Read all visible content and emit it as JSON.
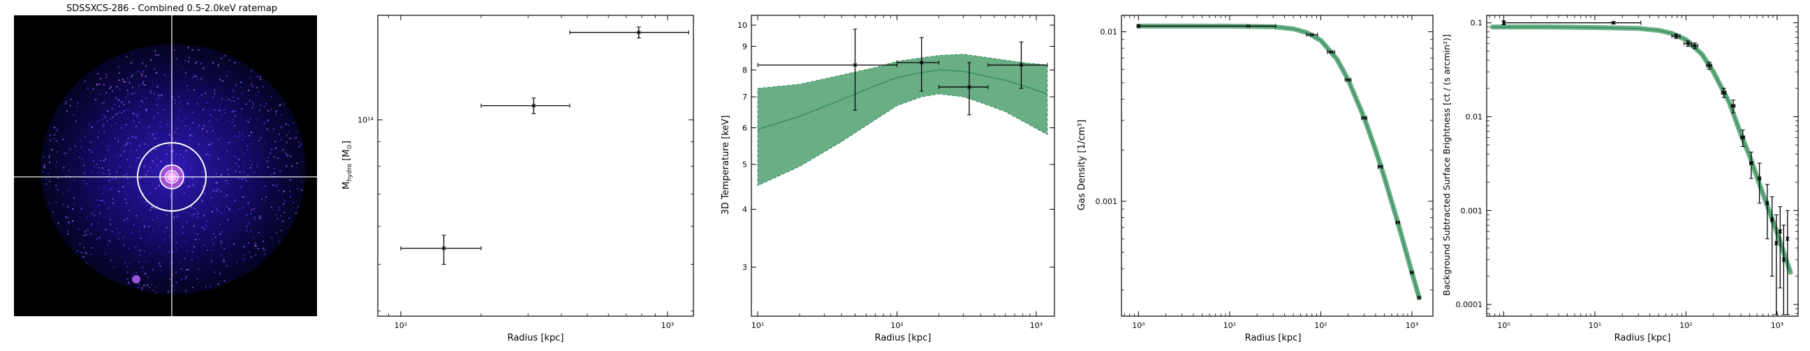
{
  "ratemap": {
    "title": "SDSSXCS-286 - Combined 0.5-2.0keV ratemap"
  },
  "chart_data": [
    {
      "type": "scatter",
      "name": "hydrostatic-mass",
      "title": "",
      "xlabel": "Radius [kpc]",
      "ylabel": "M_hydro [M_⊙]",
      "xscale": "log",
      "yscale": "log",
      "xlim": [
        82,
        1250
      ],
      "ylim": [
        39000000000000.0,
        165000000000000.0
      ],
      "xticks": [
        {
          "v": 100,
          "label": "10²"
        },
        {
          "v": 1000,
          "label": "10³"
        }
      ],
      "yticks": [
        {
          "v": 100000000000000.0,
          "label": "10¹⁴"
        }
      ],
      "grid": false,
      "points": [
        {
          "x": 145,
          "xlo": 100,
          "xhi": 200,
          "y": 54000000000000.0,
          "ylo": 50000000000000.0,
          "yhi": 57500000000000.0
        },
        {
          "x": 315,
          "xlo": 200,
          "xhi": 430,
          "y": 107000000000000.0,
          "ylo": 103000000000000.0,
          "yhi": 111000000000000.0
        },
        {
          "x": 780,
          "xlo": 430,
          "xhi": 1200,
          "y": 152000000000000.0,
          "ylo": 148000000000000.0,
          "yhi": 156000000000000.0
        }
      ]
    },
    {
      "type": "line",
      "name": "temperature-3d",
      "title": "",
      "xlabel": "Radius [kpc]",
      "ylabel": "3D Temperature [keV]",
      "xscale": "log",
      "yscale": "log",
      "xlim": [
        9,
        1350
      ],
      "ylim": [
        2.35,
        10.5
      ],
      "xticks": [
        {
          "v": 10,
          "label": "10¹"
        },
        {
          "v": 100,
          "label": "10²"
        },
        {
          "v": 1000,
          "label": "10³"
        }
      ],
      "yticks": [
        {
          "v": 3,
          "label": "3"
        },
        {
          "v": 4,
          "label": "4"
        },
        {
          "v": 5,
          "label": "5"
        },
        {
          "v": 6,
          "label": "6"
        },
        {
          "v": 7,
          "label": "7"
        },
        {
          "v": 8,
          "label": "8"
        },
        {
          "v": 9,
          "label": "9"
        },
        {
          "v": 10,
          "label": "10"
        }
      ],
      "grid": false,
      "model": {
        "x": [
          10,
          20,
          40,
          70,
          100,
          150,
          200,
          300,
          400,
          600,
          800,
          1200
        ],
        "y": [
          5.95,
          6.35,
          6.9,
          7.4,
          7.7,
          7.9,
          8.0,
          7.95,
          7.8,
          7.6,
          7.4,
          7.1
        ],
        "lower": [
          4.5,
          4.95,
          5.6,
          6.25,
          6.7,
          7.0,
          7.1,
          7.0,
          6.8,
          6.5,
          6.2,
          5.8
        ],
        "upper": [
          7.3,
          7.45,
          7.8,
          8.1,
          8.35,
          8.5,
          8.6,
          8.65,
          8.55,
          8.4,
          8.3,
          8.2
        ]
      },
      "points": [
        {
          "x": 50,
          "xlo": 10,
          "xhi": 100,
          "y": 8.2,
          "ylo": 6.55,
          "yhi": 9.8
        },
        {
          "x": 150,
          "xlo": 100,
          "xhi": 200,
          "y": 8.3,
          "ylo": 7.2,
          "yhi": 9.4
        },
        {
          "x": 330,
          "xlo": 200,
          "xhi": 450,
          "y": 7.35,
          "ylo": 6.4,
          "yhi": 8.3
        },
        {
          "x": 780,
          "xlo": 450,
          "xhi": 1200,
          "y": 8.2,
          "ylo": 7.3,
          "yhi": 9.2
        }
      ]
    },
    {
      "type": "line",
      "name": "gas-density",
      "title": "",
      "xlabel": "Radius [kpc]",
      "ylabel": "Gas Density [1/cm³]",
      "xscale": "log",
      "yscale": "log",
      "xlim": [
        0.65,
        1700
      ],
      "ylim": [
        0.00021,
        0.0125
      ],
      "xticks": [
        {
          "v": 1,
          "label": "10⁰"
        },
        {
          "v": 10,
          "label": "10¹"
        },
        {
          "v": 100,
          "label": "10²"
        },
        {
          "v": 1000,
          "label": "10³"
        }
      ],
      "yticks": [
        {
          "v": 0.001,
          "label": "0.001"
        },
        {
          "v": 0.01,
          "label": "0.01"
        }
      ],
      "grid": false,
      "model": {
        "x": [
          1,
          3,
          10,
          30,
          50,
          70,
          100,
          150,
          200,
          300,
          400,
          500,
          700,
          1000,
          1200
        ],
        "y": [
          0.0108,
          0.0108,
          0.0108,
          0.0107,
          0.0104,
          0.0099,
          0.0089,
          0.0069,
          0.0052,
          0.0031,
          0.002,
          0.00138,
          0.00075,
          0.00038,
          0.00027
        ]
      },
      "points": [
        {
          "x": 1,
          "xlo": 0.97,
          "xhi": 1.03,
          "y": 0.0108
        },
        {
          "x": 16,
          "xlo": 1,
          "xhi": 32,
          "y": 0.0108
        },
        {
          "x": 80,
          "xlo": 70,
          "xhi": 92,
          "y": 0.0096
        },
        {
          "x": 130,
          "xlo": 118,
          "xhi": 142,
          "y": 0.0076
        },
        {
          "x": 200,
          "xlo": 185,
          "xhi": 215,
          "y": 0.0052
        },
        {
          "x": 300,
          "xlo": 280,
          "xhi": 320,
          "y": 0.0031
        },
        {
          "x": 450,
          "xlo": 425,
          "xhi": 475,
          "y": 0.0016
        },
        {
          "x": 700,
          "xlo": 670,
          "xhi": 730,
          "y": 0.00075
        },
        {
          "x": 1000,
          "xlo": 965,
          "xhi": 1035,
          "y": 0.00038
        },
        {
          "x": 1200,
          "xlo": 1165,
          "xhi": 1235,
          "y": 0.00027
        }
      ]
    },
    {
      "type": "line",
      "name": "surface-brightness",
      "title": "",
      "xlabel": "Radius [kpc]",
      "ylabel": "Background Subtracted Surface Brightness [ct / (s arcmin²)]",
      "xscale": "log",
      "yscale": "log",
      "xlim": [
        0.65,
        1700
      ],
      "ylim": [
        7.5e-05,
        0.12
      ],
      "xticks": [
        {
          "v": 1,
          "label": "10⁰"
        },
        {
          "v": 10,
          "label": "10¹"
        },
        {
          "v": 100,
          "label": "10²"
        },
        {
          "v": 1000,
          "label": "10³"
        }
      ],
      "yticks": [
        {
          "v": 0.0001,
          "label": "0.0001"
        },
        {
          "v": 0.001,
          "label": "0.001"
        },
        {
          "v": 0.01,
          "label": "0.01"
        },
        {
          "v": 0.1,
          "label": "0.1"
        }
      ],
      "grid": false,
      "model": {
        "x": [
          0.75,
          1,
          3,
          10,
          30,
          50,
          70,
          100,
          150,
          200,
          300,
          400,
          500,
          700,
          1000,
          1200,
          1400
        ],
        "y": [
          0.09,
          0.09,
          0.09,
          0.089,
          0.087,
          0.083,
          0.077,
          0.066,
          0.046,
          0.03,
          0.014,
          0.0065,
          0.0038,
          0.0015,
          0.00058,
          0.00034,
          0.00022
        ]
      },
      "points": [
        {
          "x": 1,
          "xlo": 0.98,
          "xhi": 1.02,
          "y": 0.1,
          "ylo": 0.095,
          "yhi": 0.105
        },
        {
          "x": 16,
          "xlo": 1,
          "xhi": 32,
          "y": 0.1,
          "ylo": 0.097,
          "yhi": 0.103
        },
        {
          "x": 78,
          "xlo": 70,
          "xhi": 86,
          "y": 0.072,
          "ylo": 0.068,
          "yhi": 0.076
        },
        {
          "x": 105,
          "xlo": 95,
          "xhi": 115,
          "y": 0.06,
          "ylo": 0.056,
          "yhi": 0.064
        },
        {
          "x": 125,
          "xlo": 115,
          "xhi": 135,
          "y": 0.057,
          "ylo": 0.053,
          "yhi": 0.061
        },
        {
          "x": 180,
          "xlo": 168,
          "xhi": 192,
          "y": 0.035,
          "ylo": 0.032,
          "yhi": 0.038
        },
        {
          "x": 260,
          "xlo": 245,
          "xhi": 275,
          "y": 0.018,
          "ylo": 0.016,
          "yhi": 0.02
        },
        {
          "x": 330,
          "xlo": 315,
          "xhi": 345,
          "y": 0.013,
          "ylo": 0.011,
          "yhi": 0.015
        },
        {
          "x": 420,
          "xlo": 400,
          "xhi": 440,
          "y": 0.006,
          "ylo": 0.0048,
          "yhi": 0.0072
        },
        {
          "x": 520,
          "xlo": 500,
          "xhi": 540,
          "y": 0.0032,
          "ylo": 0.0022,
          "yhi": 0.0042
        },
        {
          "x": 640,
          "xlo": 620,
          "xhi": 660,
          "y": 0.0022,
          "ylo": 0.0012,
          "yhi": 0.0032
        },
        {
          "x": 780,
          "xlo": 760,
          "xhi": 800,
          "y": 0.0012,
          "ylo": 0.0005,
          "yhi": 0.0019
        },
        {
          "x": 880,
          "xlo": 860,
          "xhi": 900,
          "y": 0.0008,
          "ylo": 0.0002,
          "yhi": 0.0014
        },
        {
          "x": 980,
          "xlo": 960,
          "xhi": 1000,
          "y": 0.00045,
          "ylo": 7.8e-05,
          "yhi": 0.0009
        },
        {
          "x": 1080,
          "xlo": 1060,
          "xhi": 1100,
          "y": 0.0006,
          "ylo": 0.00015,
          "yhi": 0.0011
        },
        {
          "x": 1180,
          "xlo": 1160,
          "xhi": 1200,
          "y": 0.0003,
          "ylo": 7.8e-05,
          "yhi": 0.0007
        },
        {
          "x": 1300,
          "xlo": 1280,
          "xhi": 1320,
          "y": 0.0005,
          "ylo": 7.8e-05,
          "yhi": 0.001
        }
      ]
    }
  ]
}
